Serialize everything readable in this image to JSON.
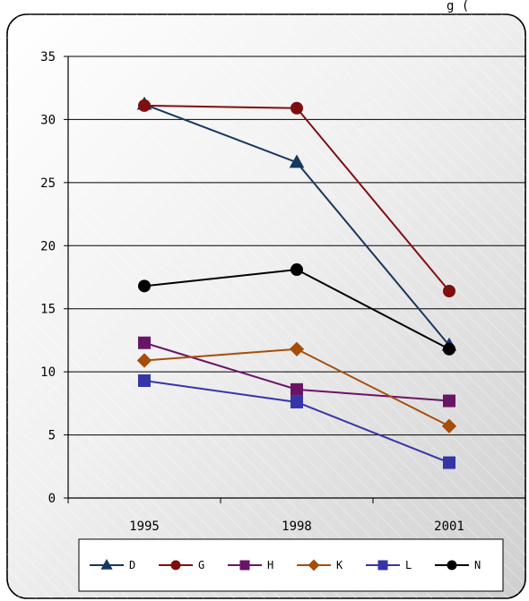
{
  "chart_data": {
    "type": "line",
    "title": "",
    "xlabel": "",
    "ylabel": "",
    "categories": [
      "1995",
      "1998",
      "2001"
    ],
    "ylim": [
      0,
      35
    ],
    "yticks": [
      0,
      5,
      10,
      15,
      20,
      25,
      30,
      35
    ],
    "grid": "horizontal",
    "legend_position": "bottom",
    "series": [
      {
        "name": "D",
        "color": "#17375e",
        "marker": "triangle",
        "values": [
          31.2,
          26.6,
          12.1
        ]
      },
      {
        "name": "G",
        "color": "#7f0f0f",
        "marker": "circle",
        "values": [
          31.1,
          30.9,
          16.4
        ]
      },
      {
        "name": "H",
        "color": "#6a1466",
        "marker": "square",
        "values": [
          12.3,
          8.6,
          7.7
        ]
      },
      {
        "name": "K",
        "color": "#a64d0c",
        "marker": "diamond",
        "values": [
          10.9,
          11.8,
          5.7
        ]
      },
      {
        "name": "L",
        "color": "#3535a8",
        "marker": "square",
        "values": [
          9.3,
          7.6,
          2.8
        ]
      },
      {
        "name": "N",
        "color": "#000000",
        "marker": "circle",
        "values": [
          16.8,
          18.1,
          11.8
        ]
      }
    ]
  }
}
